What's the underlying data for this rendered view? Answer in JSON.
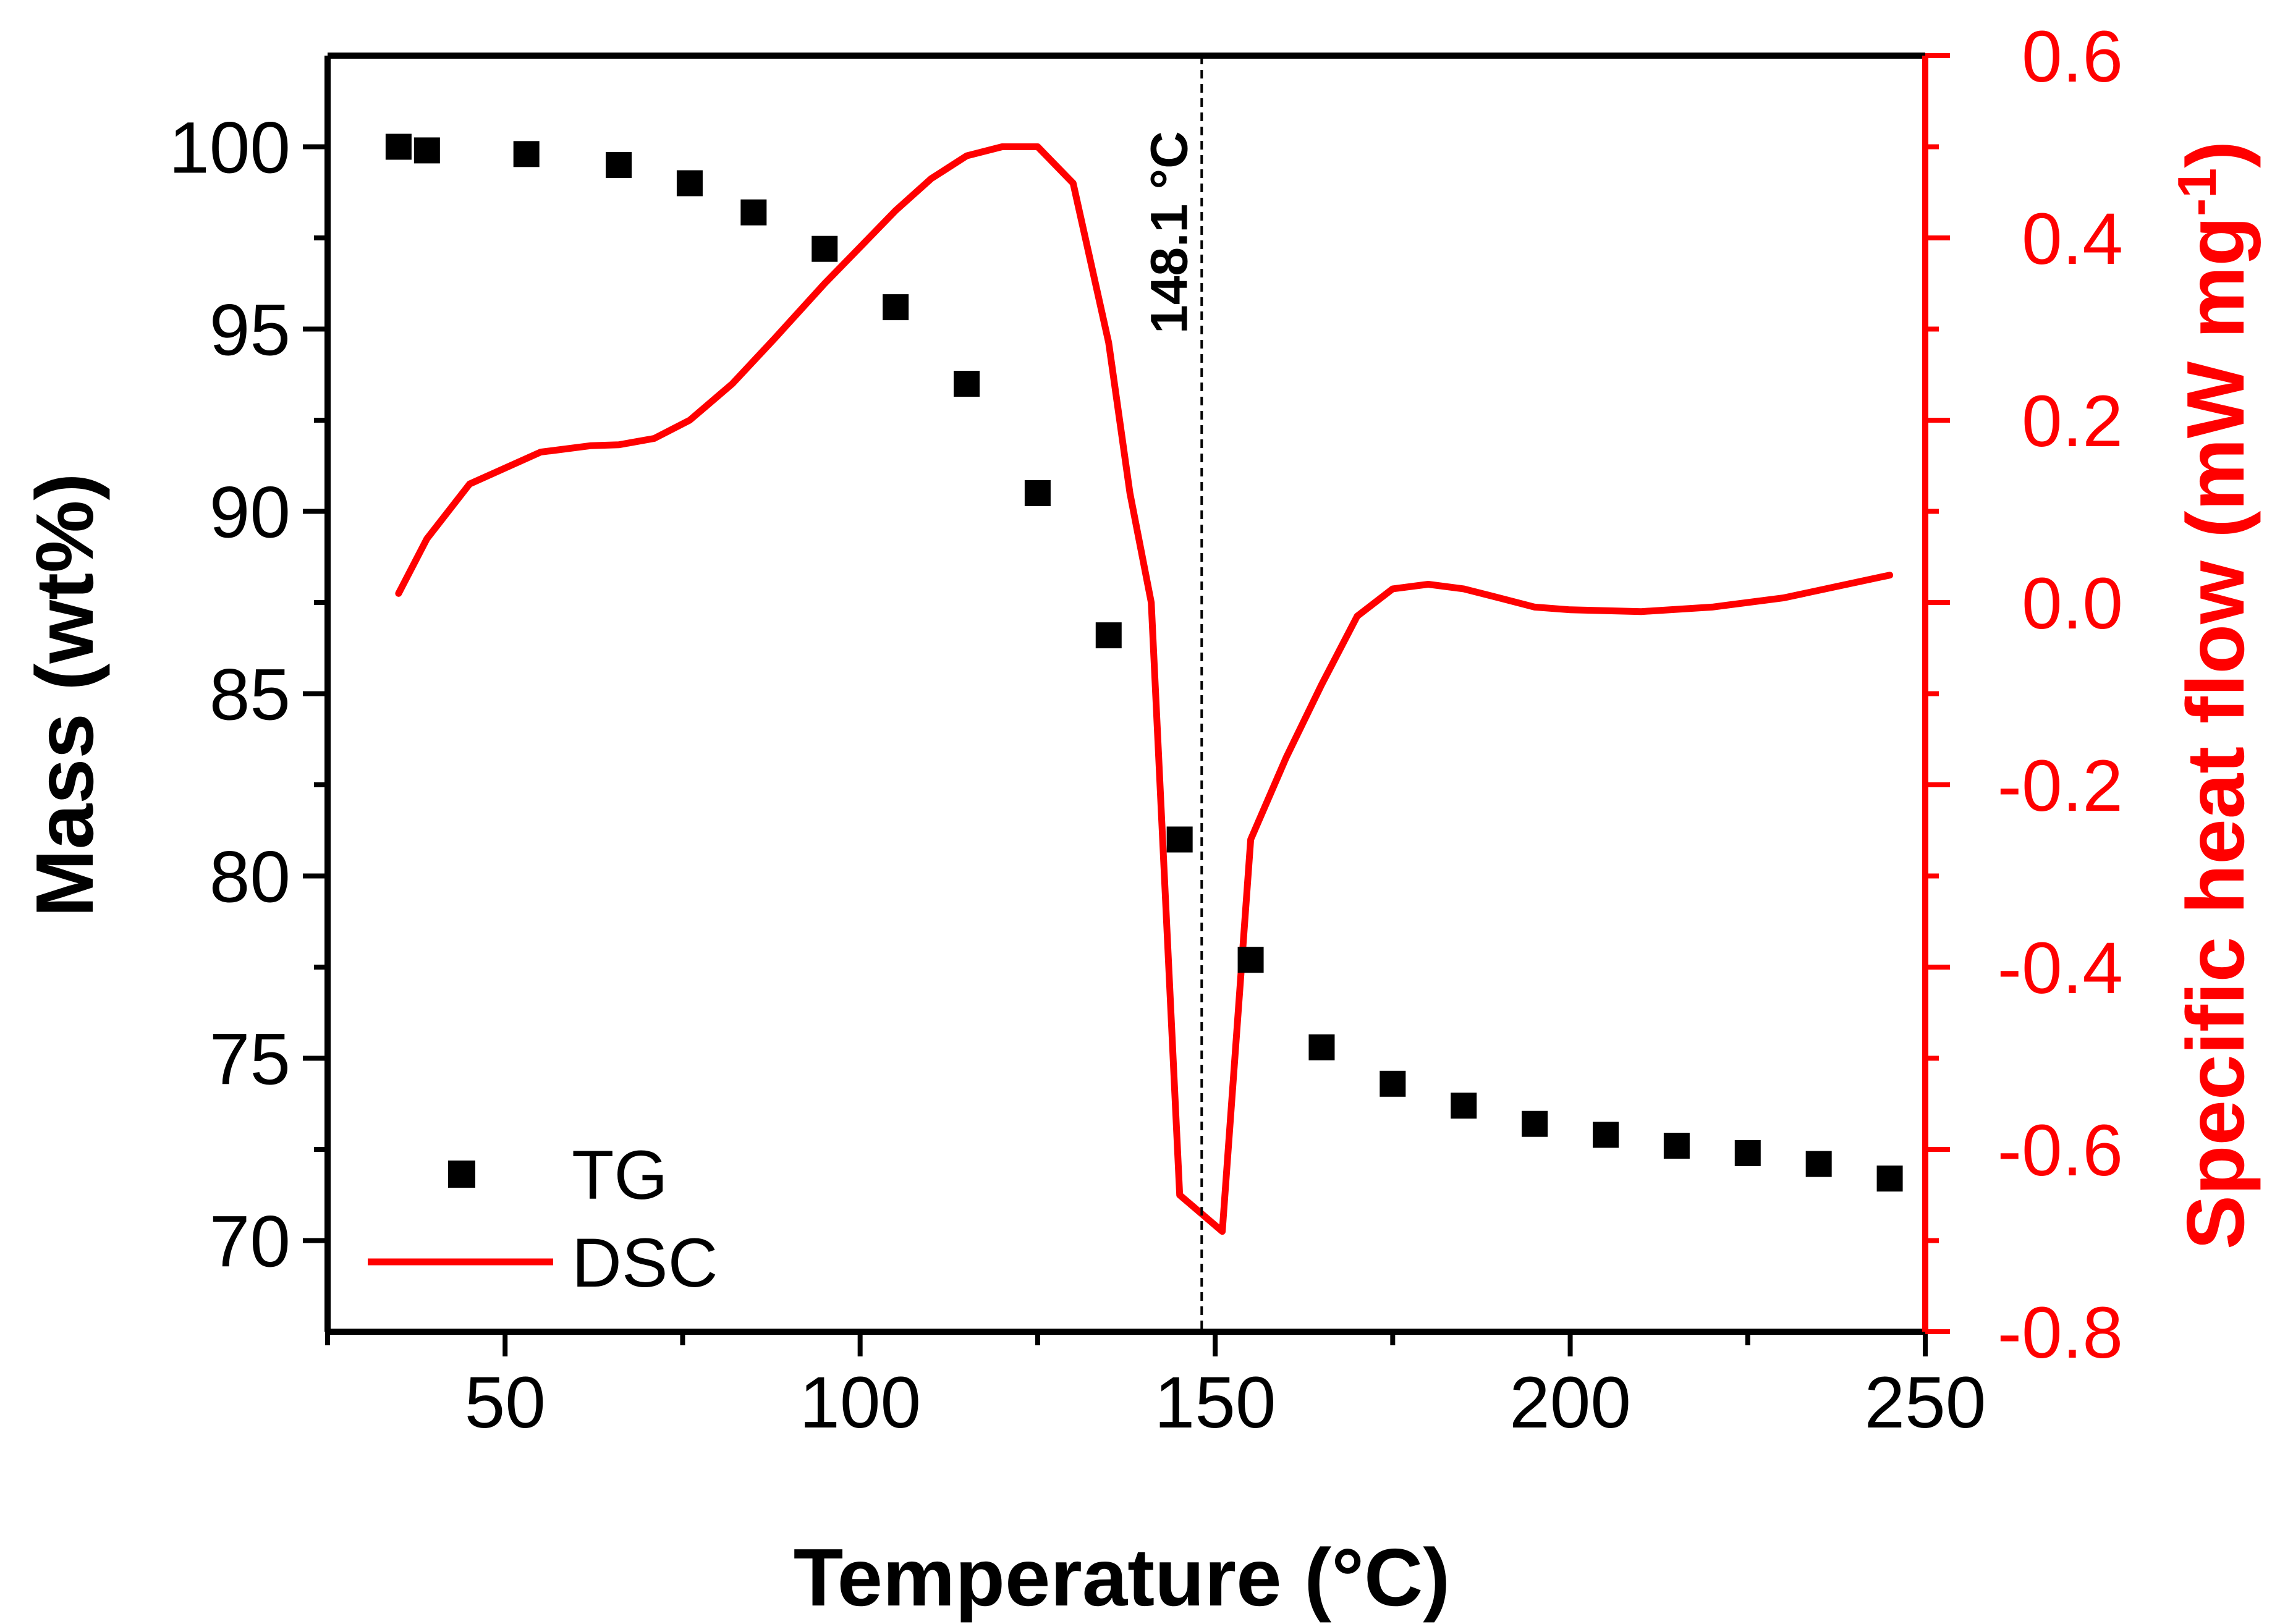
{
  "colors": {
    "tg": "#000000",
    "dsc": "#ff0000",
    "axis_left": "#000000",
    "axis_right": "#ff0000",
    "vline": "#000000"
  },
  "chart_data": {
    "type": "scatter+line",
    "title": "",
    "xlabel": "Temperature (°C)",
    "ylabel": "Mass (wt%)",
    "y2label": "Specific heat flow (mW mg",
    "y2label_sup": "-1",
    "y2label_close": ")",
    "xlim": [
      25,
      250
    ],
    "ylim": [
      67.5,
      102.5
    ],
    "y2lim": [
      -0.8,
      0.6
    ],
    "grid": false,
    "legend_position": "bottom-left",
    "x_ticks": [
      50,
      100,
      150,
      200,
      250
    ],
    "y_ticks": [
      70,
      75,
      80,
      85,
      90,
      95,
      100
    ],
    "y2_ticks": [
      -0.8,
      -0.6,
      -0.4,
      -0.2,
      0.0,
      0.2,
      0.4,
      0.6
    ],
    "x_tick_labels": [
      "50",
      "100",
      "150",
      "200",
      "250"
    ],
    "y_tick_labels": [
      "70",
      "75",
      "80",
      "85",
      "90",
      "95",
      "100"
    ],
    "y2_tick_labels": [
      "-0.8",
      "-0.6",
      "-0.4",
      "-0.2",
      "0.0",
      "0.2",
      "0.4",
      "0.6"
    ],
    "annotation": {
      "x": 148.1,
      "label": "148.1 °C"
    },
    "series": [
      {
        "name": "TG",
        "kind": "scatter",
        "axis": "left",
        "x": [
          35,
          39,
          53,
          66,
          76,
          85,
          95,
          105,
          115,
          125,
          135,
          145,
          155,
          165,
          175,
          185,
          195,
          205,
          215,
          225,
          235,
          245
        ],
        "y": [
          100.0,
          99.9,
          99.8,
          99.5,
          99.0,
          98.2,
          97.2,
          95.6,
          93.5,
          90.5,
          86.6,
          81.0,
          77.7,
          75.3,
          74.3,
          73.7,
          73.2,
          72.9,
          72.6,
          72.4,
          72.1,
          71.7
        ]
      },
      {
        "name": "DSC",
        "kind": "line",
        "axis": "right",
        "x": [
          35,
          39,
          45,
          55,
          62,
          66,
          71,
          76,
          82,
          88,
          95,
          100,
          105,
          110,
          115,
          120,
          125,
          130,
          135,
          138,
          141,
          145,
          151,
          155,
          160,
          165,
          170,
          175,
          180,
          185,
          190,
          195,
          200,
          210,
          220,
          230,
          245
        ],
        "y": [
          0.01,
          0.07,
          0.13,
          0.165,
          0.172,
          0.173,
          0.18,
          0.2,
          0.24,
          0.29,
          0.35,
          0.39,
          0.43,
          0.465,
          0.49,
          0.5,
          0.5,
          0.46,
          0.285,
          0.12,
          0.0,
          -0.65,
          -0.69,
          -0.26,
          -0.17,
          -0.09,
          -0.015,
          0.015,
          0.02,
          0.015,
          0.005,
          -0.005,
          -0.008,
          -0.01,
          -0.005,
          0.005,
          0.03
        ]
      }
    ]
  }
}
